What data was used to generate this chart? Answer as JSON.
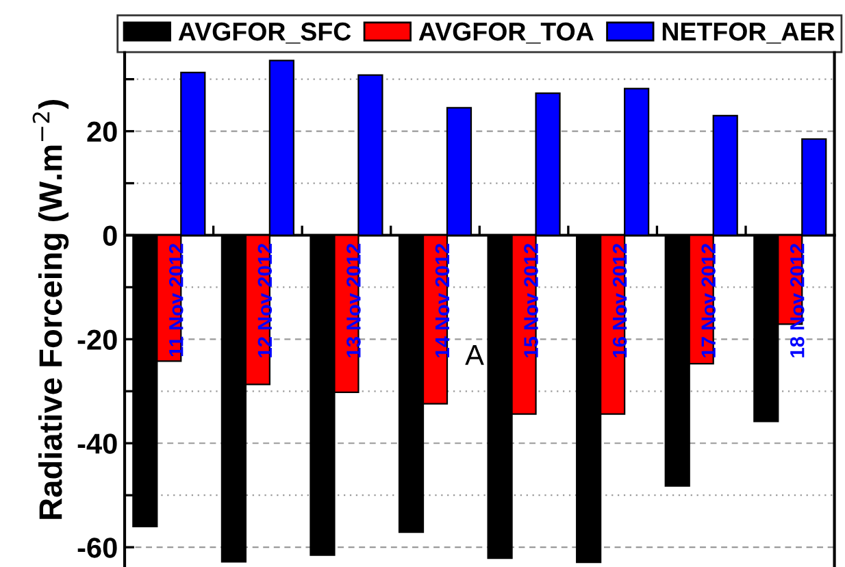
{
  "chart_data": {
    "type": "bar",
    "ylabel": "Radiative Forceing (W.m$^{−2}$)",
    "categories": [
      "11 Nov 2012",
      "12 Nov 2012",
      "13 Nov 2012",
      "14 Nov 2012",
      "15 Nov 2012",
      "16 Nov 2012",
      "17 Nov 2012",
      "18 Nov 2012"
    ],
    "series": [
      {
        "name": "AVGFOR_SFC",
        "color": "#000000",
        "values": [
          -56,
          -62.8,
          -61.5,
          -57.1,
          -62.1,
          -62.9,
          -48.2,
          -35.8
        ]
      },
      {
        "name": "AVGFOR_TOA",
        "color": "#ff0000",
        "values": [
          -24.2,
          -28.7,
          -30.2,
          -32.4,
          -34.4,
          -34.4,
          -24.7,
          -17.1
        ]
      },
      {
        "name": "NETFOR_AER",
        "color": "#0000ff",
        "values": [
          31.3,
          33.6,
          30.8,
          24.5,
          27.3,
          28.2,
          23,
          18.5
        ]
      }
    ],
    "ylim": [
      -63.8,
      35.2
    ],
    "yticks": [
      -60,
      {
        "value": -50,
        "label": null
      },
      -40,
      {
        "value": -30,
        "label": null
      },
      -20,
      {
        "value": -10,
        "label": null
      },
      0,
      {
        "value": 10,
        "label": null
      },
      20,
      {
        "value": 30,
        "label": null
      }
    ],
    "grid": "y",
    "legend": "top",
    "tick_labels": "y",
    "annotations": [
      "A"
    ]
  }
}
